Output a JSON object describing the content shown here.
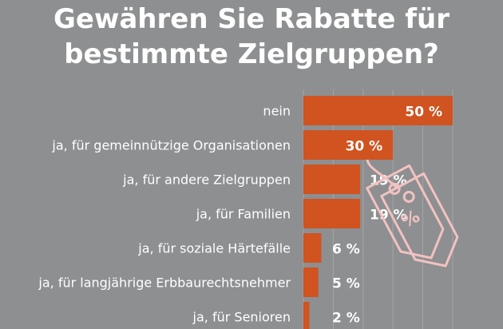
{
  "title_lines": [
    "Gewähren Sie Rabatte für",
    "bestimmte Zielgruppen?"
  ],
  "colors": {
    "background": "#8d8f91",
    "bar": "#d05320",
    "text": "#ffffff",
    "tag": "#f2c2c0"
  },
  "icons": {
    "tag_icon": "price-tag-percent-icon",
    "tag_symbol": "%"
  },
  "chart_data": {
    "type": "bar",
    "orientation": "horizontal",
    "title": "Gewähren Sie Rabatte für bestimmte Zielgruppen?",
    "categories": [
      "nein",
      "ja, für gemeinnützige Organisationen",
      "ja, für andere Zielgruppen",
      "ja, für Familien",
      "ja, für soziale Härtefälle",
      "ja, für langjährige Erbbaurechtsnehmer",
      "ja, für Senioren"
    ],
    "values": [
      50,
      30,
      19,
      19,
      6,
      5,
      2
    ],
    "value_labels": [
      "50  %",
      "30 %",
      "19 %",
      "19 %",
      "6 %",
      "5 %",
      "2 %"
    ],
    "unit": "%",
    "xlim": [
      0,
      50
    ],
    "grid": true
  }
}
